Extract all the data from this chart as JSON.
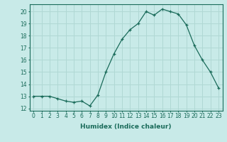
{
  "x": [
    0,
    1,
    2,
    3,
    4,
    5,
    6,
    7,
    8,
    9,
    10,
    11,
    12,
    13,
    14,
    15,
    16,
    17,
    18,
    19,
    20,
    21,
    22,
    23
  ],
  "y": [
    13.0,
    13.0,
    13.0,
    12.8,
    12.6,
    12.5,
    12.6,
    12.2,
    13.1,
    15.0,
    16.5,
    17.7,
    18.5,
    19.0,
    20.0,
    19.7,
    20.2,
    20.0,
    19.8,
    18.9,
    17.2,
    16.0,
    15.0,
    13.7
  ],
  "line_color": "#1a6b5a",
  "marker": "+",
  "bg_color": "#c8eae8",
  "grid_color": "#b0d8d4",
  "xlabel": "Humidex (Indice chaleur)",
  "xlim": [
    -0.5,
    23.5
  ],
  "ylim": [
    11.8,
    20.6
  ],
  "yticks": [
    12,
    13,
    14,
    15,
    16,
    17,
    18,
    19,
    20
  ],
  "xticks": [
    0,
    1,
    2,
    3,
    4,
    5,
    6,
    7,
    8,
    9,
    10,
    11,
    12,
    13,
    14,
    15,
    16,
    17,
    18,
    19,
    20,
    21,
    22,
    23
  ],
  "tick_fontsize": 5.5,
  "xlabel_fontsize": 6.5
}
